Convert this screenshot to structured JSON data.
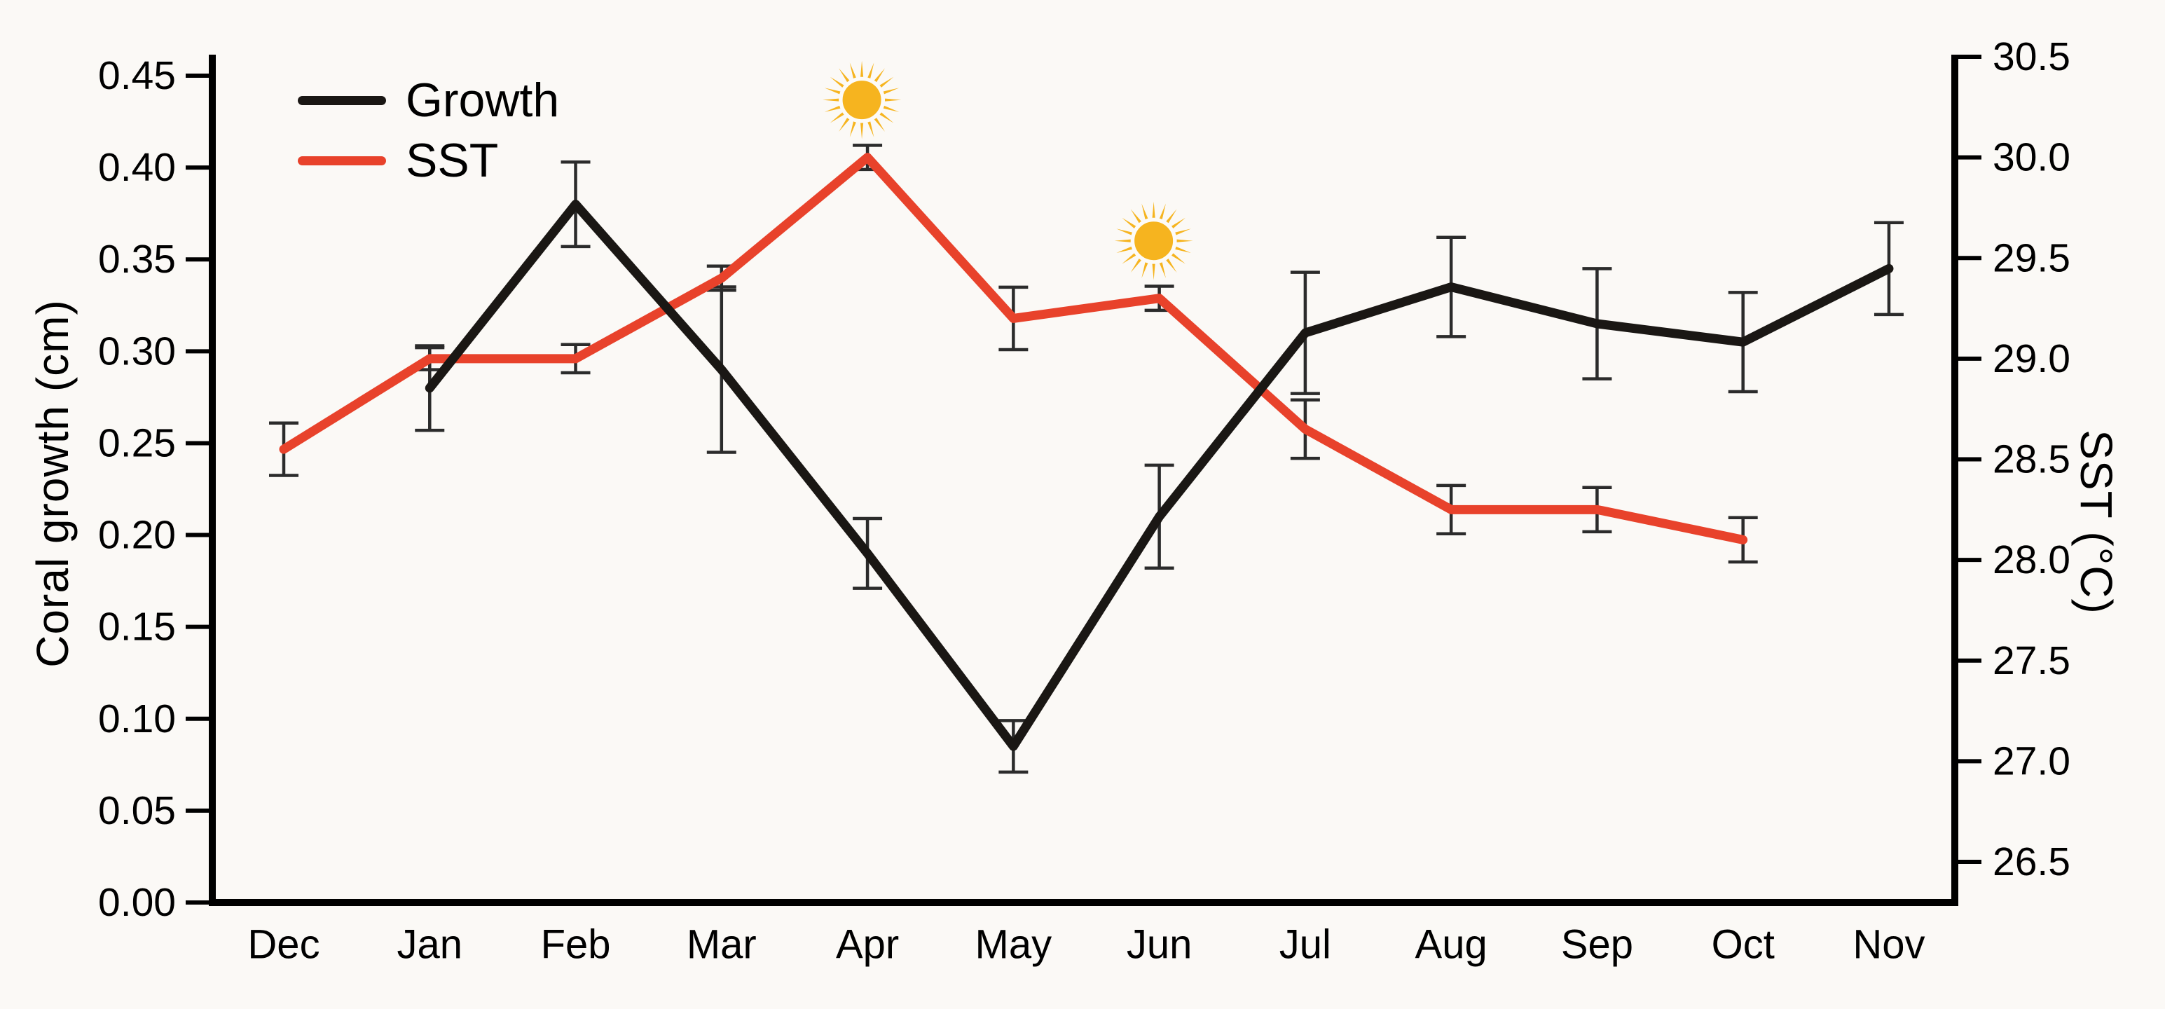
{
  "chart_data": {
    "type": "line",
    "title": "",
    "categories": [
      "Dec",
      "Jan",
      "Feb",
      "Mar",
      "Apr",
      "May",
      "Jun",
      "Jul",
      "Aug",
      "Sep",
      "Oct",
      "Nov"
    ],
    "series": [
      {
        "name": "Growth",
        "axis": "left",
        "color": "#1a1714",
        "values": [
          null,
          0.28,
          0.38,
          0.29,
          0.19,
          0.085,
          0.21,
          0.31,
          0.335,
          0.315,
          0.305,
          0.345
        ],
        "errors": [
          null,
          0.023,
          0.023,
          0.045,
          0.019,
          0.014,
          0.028,
          0.033,
          0.027,
          0.03,
          0.027,
          0.025
        ]
      },
      {
        "name": "SST",
        "axis": "right",
        "color": "#e8422b",
        "values": [
          28.55,
          29.0,
          29.0,
          29.4,
          30.0,
          29.2,
          29.3,
          28.65,
          28.25,
          28.25,
          28.1,
          null
        ],
        "errors": [
          0.13,
          0.055,
          0.07,
          0.06,
          0.06,
          0.155,
          0.06,
          0.145,
          0.12,
          0.11,
          0.11,
          null
        ]
      }
    ],
    "left_axis": {
      "label": "Coral growth (cm)",
      "min": 0.0,
      "max": 0.45,
      "tick_step": 0.05,
      "tick_labels": [
        "0.00",
        "0.05",
        "0.10",
        "0.15",
        "0.20",
        "0.25",
        "0.30",
        "0.35",
        "0.40",
        "0.45"
      ]
    },
    "right_axis": {
      "label": "SST (°C)",
      "min": 26.5,
      "max": 30.5,
      "tick_step": 0.5,
      "tick_labels": [
        "26.5",
        "27.0",
        "27.5",
        "28.0",
        "28.5",
        "29.0",
        "29.5",
        "30.0",
        "30.5"
      ]
    },
    "legend": {
      "position": "top-left",
      "entries": [
        "Growth",
        "SST"
      ]
    },
    "annotations": [
      {
        "type": "sun-icon",
        "category": "Apr",
        "series": "SST",
        "meaning": "peak sea surface temperature"
      },
      {
        "type": "sun-icon",
        "category": "Jun",
        "series": "SST",
        "meaning": "secondary sea surface temperature peak"
      }
    ],
    "grid": false,
    "error_bars": true
  },
  "axis_titles": {
    "left": "Coral growth (cm)",
    "right": "SST (°C)"
  },
  "legend": {
    "growth_label": "Growth",
    "sst_label": "SST"
  },
  "colors": {
    "growth_line": "#1a1714",
    "sst_line": "#e8422b",
    "error_bar": "#2b2b2b",
    "sun": "#f6b41f",
    "background": "#fbf9f6",
    "text": "#000000"
  }
}
